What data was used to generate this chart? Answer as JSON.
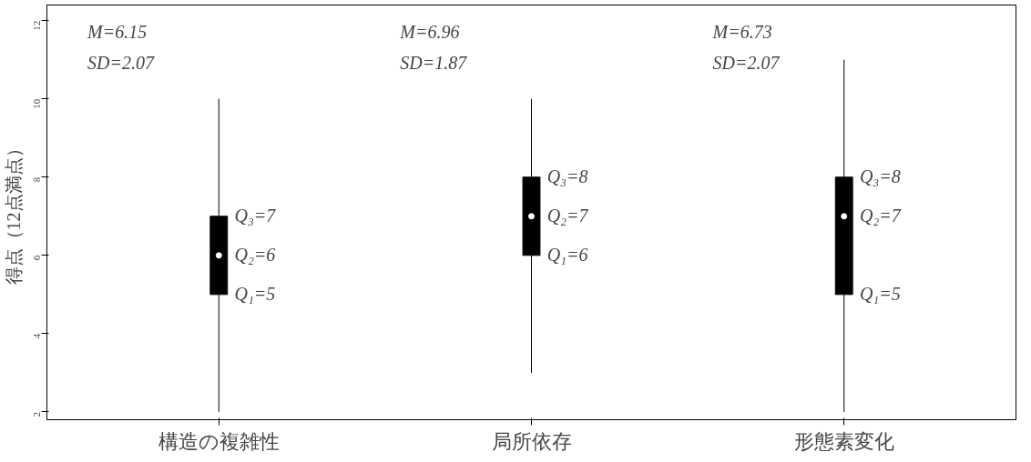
{
  "chart_data": {
    "type": "box",
    "ylabel": "得点（12点満点）",
    "categories": [
      "構造の複雑性",
      "局所依存",
      "形態素変化"
    ],
    "boxes": [
      {
        "low": 2,
        "q1": 5,
        "median": 6,
        "q3": 7,
        "high": 10
      },
      {
        "low": 3,
        "q1": 6,
        "median": 7,
        "q3": 8,
        "high": 10
      },
      {
        "low": 2,
        "q1": 5,
        "median": 7,
        "q3": 8,
        "high": 11
      }
    ],
    "color": "#000000",
    "ylim": [
      1.8,
      12.4
    ],
    "yticks": [
      2,
      4,
      6,
      8,
      10,
      12
    ],
    "grid": false,
    "annotations": [
      "M=6.15",
      "SD=2.07",
      "M=6.96",
      "SD=1.87",
      "M=6.73",
      "SD=2.07",
      {
        "text": "Q₃=7",
        "x": "構造の複雑性",
        "y": 7
      },
      {
        "text": "Q₂=6",
        "x": "構造の複雑性",
        "y": 6
      },
      {
        "text": "Q₁=5",
        "x": "構造の複雑性",
        "y": 5
      },
      {
        "text": "Q₃=8",
        "x": "局所依存",
        "y": 8
      },
      {
        "text": "Q₂=7",
        "x": "局所依存",
        "y": 7
      },
      {
        "text": "Q₁=6",
        "x": "局所依存",
        "y": 6
      },
      {
        "text": "Q₃=8",
        "x": "形態素変化",
        "y": 8
      },
      {
        "text": "Q₂=7",
        "x": "形態素変化",
        "y": 7
      },
      {
        "text": "Q₁=5",
        "x": "形態素変化",
        "y": 5
      }
    ]
  }
}
